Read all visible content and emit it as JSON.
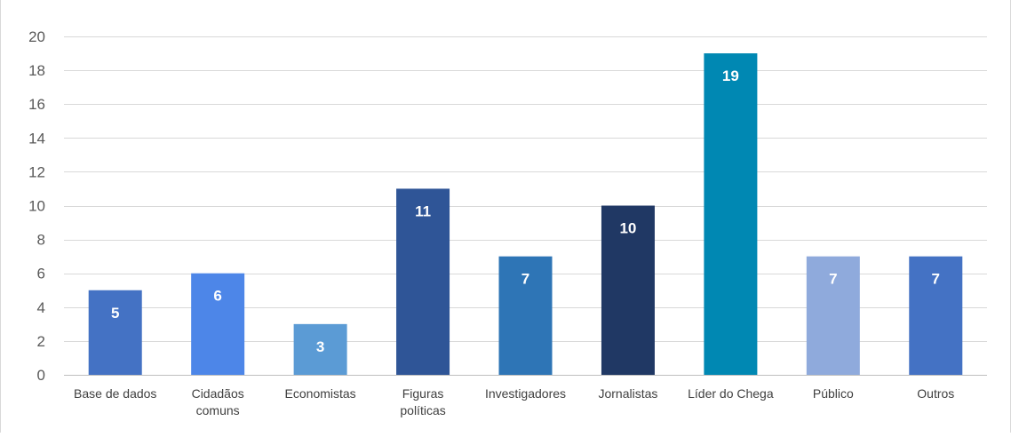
{
  "chart_data": {
    "type": "bar",
    "title": "",
    "xlabel": "",
    "ylabel": "",
    "ylim": [
      0,
      20
    ],
    "yticks": [
      0,
      2,
      4,
      6,
      8,
      10,
      12,
      14,
      16,
      18,
      20
    ],
    "grid": true,
    "legend": "none",
    "categories": [
      [
        "Base de dados"
      ],
      [
        "Cidadãos",
        "comuns"
      ],
      [
        "Economistas"
      ],
      [
        "Figuras",
        "políticas"
      ],
      [
        "Investigadores"
      ],
      [
        "Jornalistas"
      ],
      [
        "Líder do Chega"
      ],
      [
        "Público"
      ],
      [
        "Outros"
      ]
    ],
    "values": [
      5,
      6,
      3,
      11,
      7,
      10,
      19,
      7,
      7
    ],
    "colors": [
      "#4472c4",
      "#4d86e8",
      "#5b9bd5",
      "#2f5597",
      "#2e75b6",
      "#203864",
      "#0088b3",
      "#8faadc",
      "#4472c4"
    ]
  }
}
